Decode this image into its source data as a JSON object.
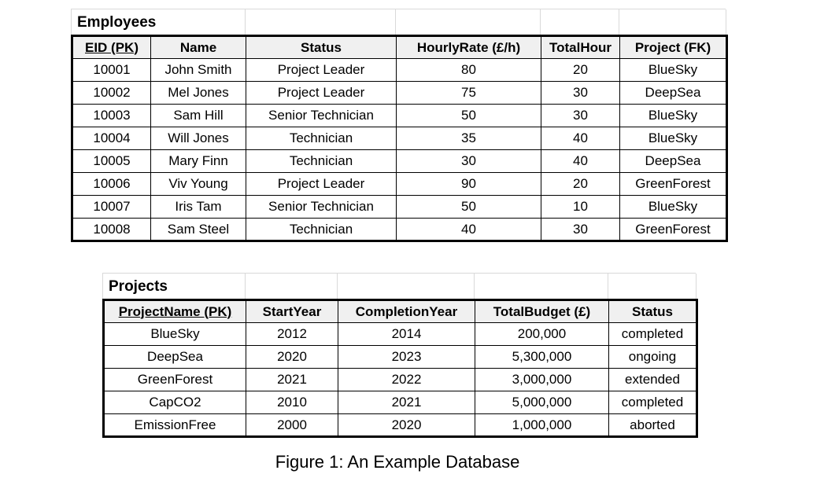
{
  "figure": {
    "caption": "Figure 1: An Example Database"
  },
  "employees_table": {
    "title": "Employees",
    "columns": [
      "EID (PK)",
      "Name",
      "Status",
      "HourlyRate (£/h)",
      "TotalHour",
      "Project (FK)"
    ],
    "rows": [
      [
        "10001",
        "John Smith",
        "Project Leader",
        "80",
        "20",
        "BlueSky"
      ],
      [
        "10002",
        "Mel Jones",
        "Project Leader",
        "75",
        "30",
        "DeepSea"
      ],
      [
        "10003",
        "Sam Hill",
        "Senior Technician",
        "50",
        "30",
        "BlueSky"
      ],
      [
        "10004",
        "Will Jones",
        "Technician",
        "35",
        "40",
        "BlueSky"
      ],
      [
        "10005",
        "Mary Finn",
        "Technician",
        "30",
        "40",
        "DeepSea"
      ],
      [
        "10006",
        "Viv Young",
        "Project Leader",
        "90",
        "20",
        "GreenForest"
      ],
      [
        "10007",
        "Iris Tam",
        "Senior Technician",
        "50",
        "10",
        "BlueSky"
      ],
      [
        "10008",
        "Sam Steel",
        "Technician",
        "40",
        "30",
        "GreenForest"
      ]
    ]
  },
  "projects_table": {
    "title": "Projects",
    "columns": [
      "ProjectName (PK)",
      "StartYear",
      "CompletionYear",
      "TotalBudget (£)",
      "Status"
    ],
    "rows": [
      [
        "BlueSky",
        "2012",
        "2014",
        "200,000",
        "completed"
      ],
      [
        "DeepSea",
        "2020",
        "2023",
        "5,300,000",
        "ongoing"
      ],
      [
        "GreenForest",
        "2021",
        "2022",
        "3,000,000",
        "extended"
      ],
      [
        "CapCO2",
        "2010",
        "2021",
        "5,000,000",
        "completed"
      ],
      [
        "EmissionFree",
        "2000",
        "2020",
        "1,000,000",
        "aborted"
      ]
    ]
  },
  "colors": {
    "header_background": "#f0f0f0",
    "table_border": "#000000",
    "gridline": "#d9d9d9",
    "page_background": "#ffffff"
  }
}
